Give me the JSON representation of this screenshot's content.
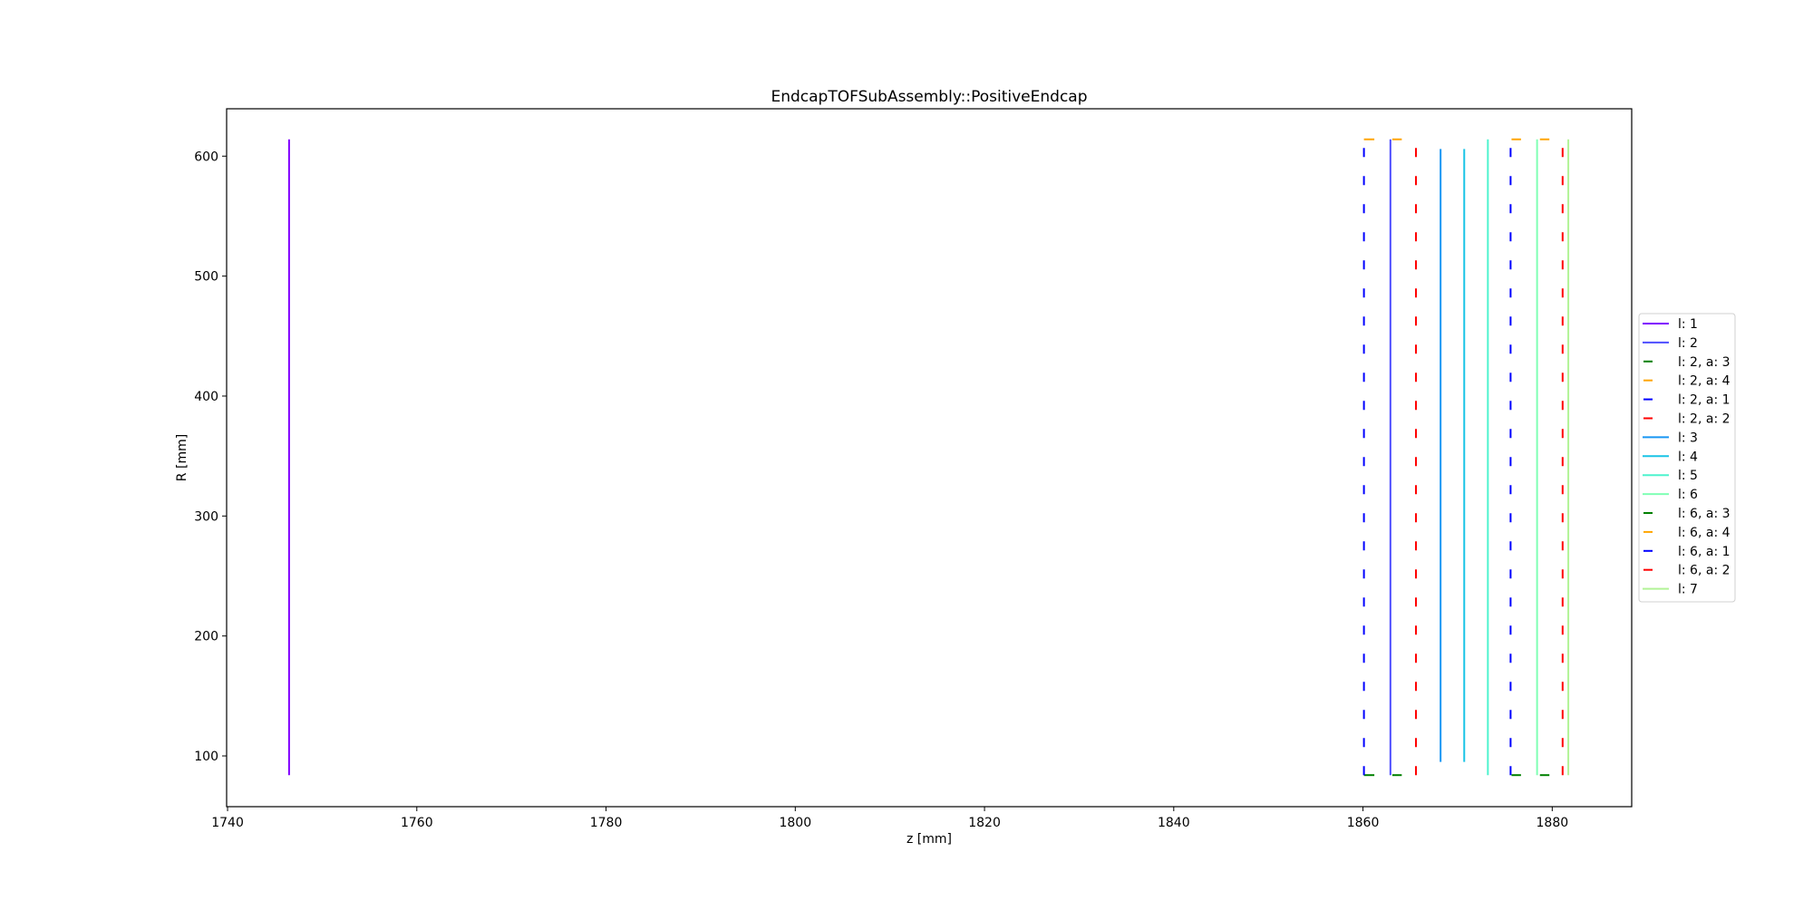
{
  "chart_data": {
    "type": "line",
    "title": "EndcapTOFSubAssembly::PositiveEndcap",
    "xlabel": "z [mm]",
    "ylabel": "R [mm]",
    "xlim": [
      1739.9,
      1888.4
    ],
    "ylim": [
      57.7,
      639.5
    ],
    "xticks": [
      1740,
      1760,
      1780,
      1800,
      1820,
      1840,
      1860,
      1880
    ],
    "yticks": [
      100,
      200,
      300,
      400,
      500,
      600
    ],
    "grid": false,
    "legend_position": "right-outside",
    "series": [
      {
        "name": "l: 1",
        "color": "#8000ff",
        "style": "solid",
        "segments": [
          [
            [
              1746.5,
              84
            ],
            [
              1746.5,
              614
            ]
          ]
        ]
      },
      {
        "name": "l: 2",
        "color": "#4d4dff",
        "style": "solid",
        "segments": [
          [
            [
              1862.9,
              84
            ],
            [
              1862.9,
              614
            ]
          ]
        ]
      },
      {
        "name": "l: 2, a: 3",
        "color": "#008000",
        "style": "solid-short",
        "segments": [
          [
            [
              1860.1,
              84
            ],
            [
              1861.2,
              84
            ]
          ],
          [
            [
              1863.1,
              84
            ],
            [
              1864.1,
              84
            ]
          ]
        ]
      },
      {
        "name": "l: 2, a: 4",
        "color": "#ffa500",
        "style": "solid-short",
        "segments": [
          [
            [
              1860.1,
              614
            ],
            [
              1861.2,
              614
            ]
          ],
          [
            [
              1863.1,
              614
            ],
            [
              1864.1,
              614
            ]
          ]
        ]
      },
      {
        "name": "l: 2, a: 1",
        "color": "#0000ff",
        "style": "dashed",
        "segments": [
          [
            [
              1860.1,
              84
            ],
            [
              1860.1,
              614
            ]
          ]
        ]
      },
      {
        "name": "l: 2, a: 2",
        "color": "#ff0000",
        "style": "dashed",
        "segments": [
          [
            [
              1865.6,
              84
            ],
            [
              1865.6,
              614
            ]
          ]
        ]
      },
      {
        "name": "l: 3",
        "color": "#1996f3",
        "style": "solid",
        "segments": [
          [
            [
              1868.2,
              95
            ],
            [
              1868.2,
              606
            ]
          ]
        ]
      },
      {
        "name": "l: 4",
        "color": "#1ac4e6",
        "style": "solid",
        "segments": [
          [
            [
              1870.7,
              95
            ],
            [
              1870.7,
              606
            ]
          ]
        ]
      },
      {
        "name": "l: 5",
        "color": "#4df3ce",
        "style": "solid",
        "segments": [
          [
            [
              1873.2,
              84
            ],
            [
              1873.2,
              614
            ]
          ]
        ]
      },
      {
        "name": "l: 6",
        "color": "#80ffb4",
        "style": "solid",
        "segments": [
          [
            [
              1878.4,
              84
            ],
            [
              1878.4,
              614
            ]
          ]
        ]
      },
      {
        "name": "l: 6, a: 3",
        "color": "#008000",
        "style": "solid-short",
        "segments": [
          [
            [
              1875.7,
              84
            ],
            [
              1876.7,
              84
            ]
          ],
          [
            [
              1878.7,
              84
            ],
            [
              1879.7,
              84
            ]
          ]
        ]
      },
      {
        "name": "l: 6, a: 4",
        "color": "#ffa500",
        "style": "solid-short",
        "segments": [
          [
            [
              1875.7,
              614
            ],
            [
              1876.7,
              614
            ]
          ],
          [
            [
              1878.7,
              614
            ],
            [
              1879.7,
              614
            ]
          ]
        ]
      },
      {
        "name": "l: 6, a: 1",
        "color": "#0000ff",
        "style": "dashed",
        "segments": [
          [
            [
              1875.6,
              84
            ],
            [
              1875.6,
              614
            ]
          ]
        ]
      },
      {
        "name": "l: 6, a: 2",
        "color": "#ff0000",
        "style": "dashed",
        "segments": [
          [
            [
              1881.1,
              84
            ],
            [
              1881.1,
              614
            ]
          ]
        ]
      },
      {
        "name": "l: 7",
        "color": "#b2f396",
        "style": "solid",
        "segments": [
          [
            [
              1881.7,
              84
            ],
            [
              1881.7,
              614
            ]
          ]
        ]
      }
    ]
  }
}
